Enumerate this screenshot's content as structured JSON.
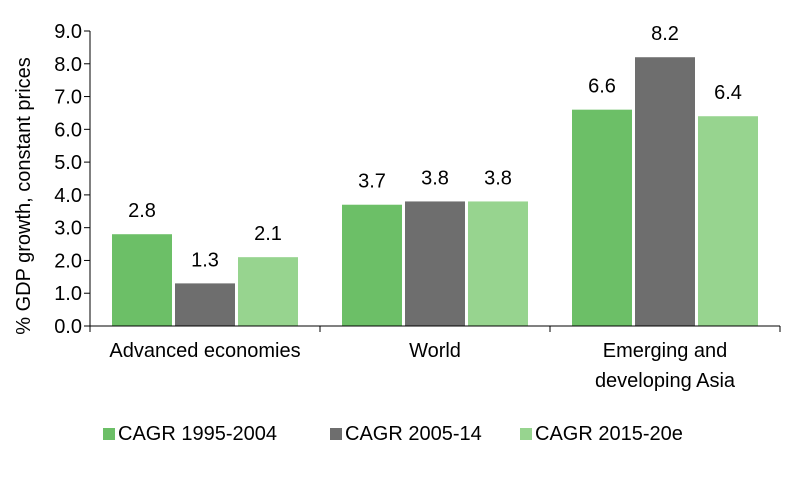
{
  "chart_data": {
    "type": "bar",
    "title": "",
    "xlabel": "",
    "ylabel": "% GDP growth, constant prices",
    "ylim": [
      0,
      9
    ],
    "ytick_step": 1,
    "ytick_labels": [
      "0.0",
      "1.0",
      "2.0",
      "3.0",
      "4.0",
      "5.0",
      "6.0",
      "7.0",
      "8.0",
      "9.0"
    ],
    "categories": [
      [
        "Advanced economies"
      ],
      [
        "World"
      ],
      [
        "Emerging and",
        "developing Asia"
      ]
    ],
    "series": [
      {
        "name": "CAGR 1995-2004",
        "color": "#6cbf67",
        "values": [
          2.8,
          3.7,
          6.6
        ],
        "labels": [
          "2.8",
          "3.7",
          "6.6"
        ]
      },
      {
        "name": "CAGR 2005-14",
        "color": "#6e6e6e",
        "values": [
          1.3,
          3.8,
          8.2
        ],
        "labels": [
          "1.3",
          "3.8",
          "8.2"
        ]
      },
      {
        "name": "CAGR 2015-20e",
        "color": "#97d48f",
        "values": [
          2.1,
          3.8,
          6.4
        ],
        "labels": [
          "2.1",
          "3.8",
          "6.4"
        ]
      }
    ],
    "legend_position": "bottom",
    "grid": false
  }
}
